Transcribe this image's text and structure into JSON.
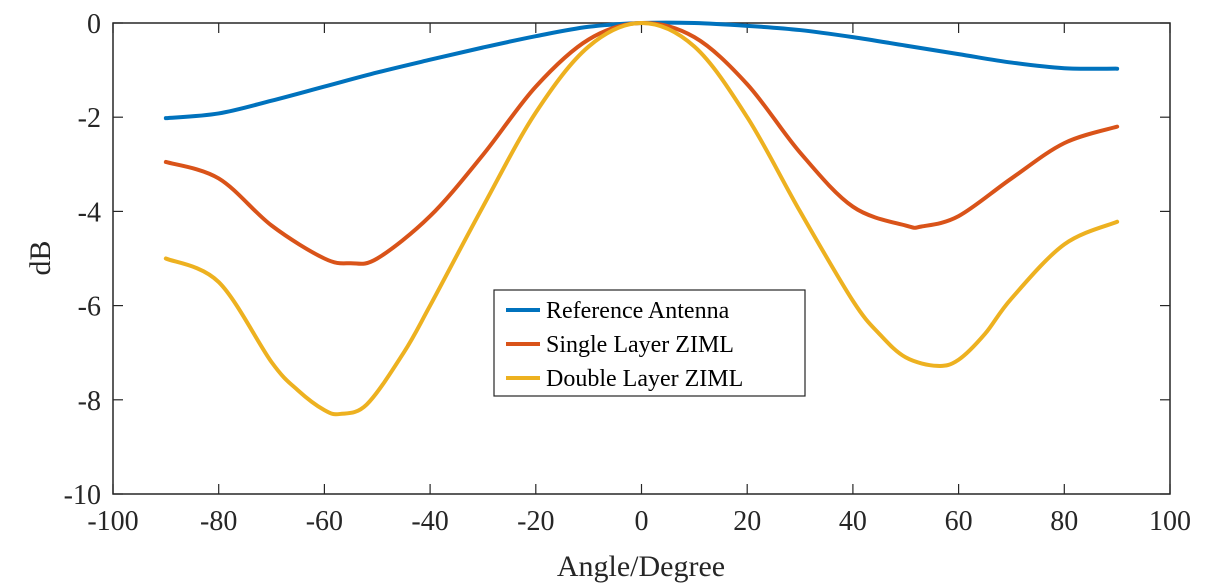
{
  "chart_data": {
    "type": "line",
    "title": "",
    "xlabel": "Angle/Degree",
    "ylabel": "dB",
    "xlim": [
      -100,
      100
    ],
    "ylim": [
      -10,
      0
    ],
    "xticks": [
      -100,
      -80,
      -60,
      -40,
      -20,
      0,
      20,
      40,
      60,
      80,
      100
    ],
    "yticks": [
      0,
      -2,
      -4,
      -6,
      -8,
      -10
    ],
    "xtick_labels": [
      "-100",
      "-80",
      "-60",
      "-40",
      "-20",
      "0",
      "20",
      "40",
      "60",
      "80",
      "100"
    ],
    "ytick_labels": [
      "0",
      "-2",
      "-4",
      "-6",
      "-8",
      "-10"
    ],
    "grid": false,
    "legend_position": "center",
    "series": [
      {
        "name": "Reference Antenna",
        "color": "#0072BD",
        "x": [
          -90,
          -80,
          -70,
          -60,
          -50,
          -40,
          -30,
          -20,
          -10,
          0,
          10,
          20,
          30,
          40,
          50,
          60,
          70,
          80,
          90
        ],
        "y": [
          -2.02,
          -1.92,
          -1.65,
          -1.35,
          -1.05,
          -0.78,
          -0.52,
          -0.28,
          -0.08,
          0.0,
          0.0,
          -0.06,
          -0.15,
          -0.3,
          -0.48,
          -0.66,
          -0.84,
          -0.96,
          -0.97
        ]
      },
      {
        "name": "Single Layer ZIML",
        "color": "#D95319",
        "x": [
          -90,
          -80,
          -70,
          -60,
          -55,
          -50,
          -40,
          -30,
          -20,
          -10,
          0,
          10,
          20,
          30,
          40,
          50,
          53,
          60,
          70,
          80,
          90
        ],
        "y": [
          -2.95,
          -3.3,
          -4.3,
          -5.0,
          -5.1,
          -5.0,
          -4.1,
          -2.8,
          -1.35,
          -0.35,
          0.0,
          -0.3,
          -1.3,
          -2.75,
          -3.9,
          -4.3,
          -4.32,
          -4.1,
          -3.3,
          -2.55,
          -2.2
        ]
      },
      {
        "name": "Double Layer ZIML",
        "color": "#EDB120",
        "x": [
          -90,
          -80,
          -70,
          -65,
          -60,
          -57,
          -52,
          -45,
          -40,
          -30,
          -20,
          -10,
          0,
          10,
          20,
          30,
          40,
          45,
          50,
          56,
          60,
          65,
          70,
          80,
          90
        ],
        "y": [
          -5.0,
          -5.5,
          -7.2,
          -7.8,
          -8.22,
          -8.3,
          -8.1,
          -7.0,
          -6.0,
          -3.9,
          -1.9,
          -0.5,
          0.0,
          -0.5,
          -2.0,
          -4.0,
          -5.9,
          -6.6,
          -7.1,
          -7.28,
          -7.15,
          -6.6,
          -5.85,
          -4.7,
          -4.22
        ]
      }
    ]
  }
}
